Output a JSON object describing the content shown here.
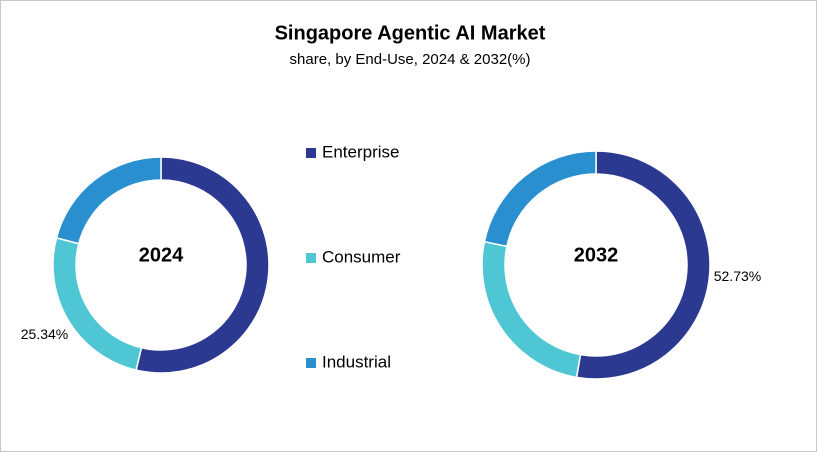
{
  "title": "Singapore Agentic AI Market",
  "subtitle": "share, by End-Use, 2024 & 2032(%)",
  "chart_data": [
    {
      "type": "donut",
      "label": "2024",
      "categories": [
        "Enterprise",
        "Consumer",
        "Industrial"
      ],
      "values": [
        53.7,
        25.34,
        20.96
      ],
      "value_labels": [
        null,
        "25.34%",
        null
      ],
      "colors": [
        "#2b3990",
        "#4ec6d3",
        "#2a8fcf"
      ]
    },
    {
      "type": "donut",
      "label": "2032",
      "categories": [
        "Enterprise",
        "Consumer",
        "Industrial"
      ],
      "values": [
        52.73,
        25.55,
        21.72
      ],
      "value_labels": [
        "52.73%",
        null,
        null
      ],
      "colors": [
        "#2b3990",
        "#4ec6d3",
        "#2a8fcf"
      ]
    }
  ]
}
